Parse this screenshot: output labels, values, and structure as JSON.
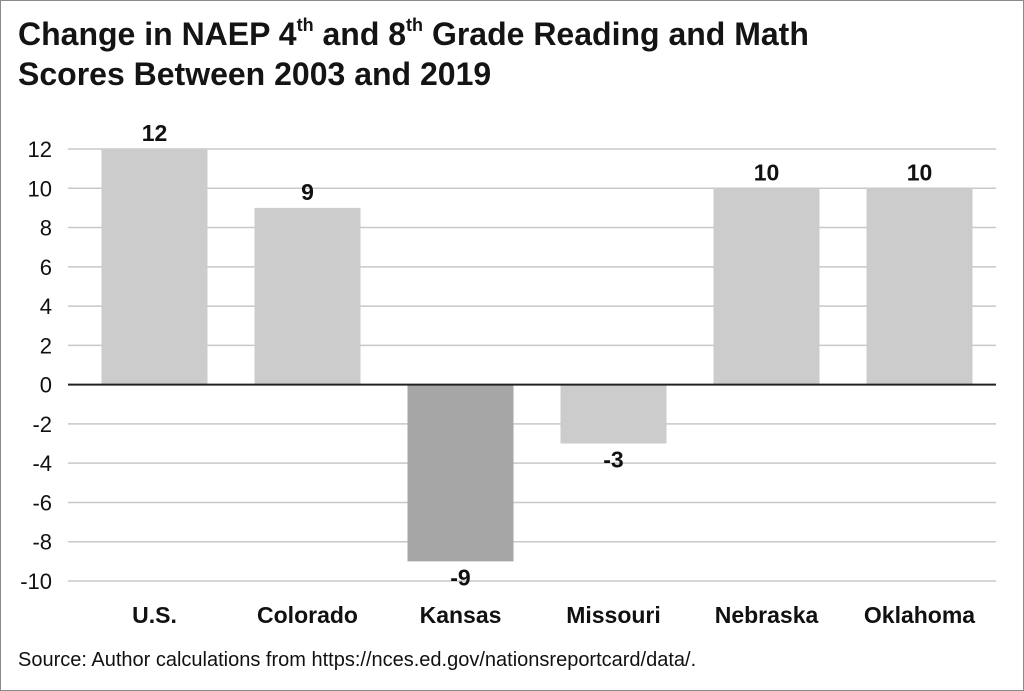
{
  "page": {
    "title": {
      "part1": "Change in NAEP 4",
      "sup1": "th",
      "part2": " and 8",
      "sup2": "th",
      "part3": " Grade Reading and Math",
      "line2": "Scores Between 2003 and 2019"
    },
    "source": "Source: Author calculations from https://nces.ed.gov/nationsreportcard/data/."
  },
  "chart_data": {
    "type": "bar",
    "title": "Change in NAEP 4th and 8th Grade Reading and Math Scores Between 2003 and 2019",
    "xlabel": "",
    "ylabel": "",
    "categories": [
      "U.S.",
      "Colorado",
      "Kansas",
      "Missouri",
      "Nebraska",
      "Oklahoma"
    ],
    "values": [
      12,
      9,
      -9,
      -3,
      10,
      10
    ],
    "data_labels": [
      "12",
      "9",
      "-9",
      "-3",
      "10",
      "10"
    ],
    "bar_colors": [
      "#cccccc",
      "#cccccc",
      "#a6a6a6",
      "#cccccc",
      "#cccccc",
      "#cccccc"
    ],
    "ylim": [
      -10,
      12
    ],
    "yticks": [
      12,
      10,
      8,
      6,
      4,
      2,
      0,
      -2,
      -4,
      -6,
      -8,
      -10
    ],
    "grid": true,
    "legend": "none",
    "colors": {
      "gridline": "#c8c8c8",
      "zero_line": "#222222",
      "text": "#111111"
    }
  }
}
